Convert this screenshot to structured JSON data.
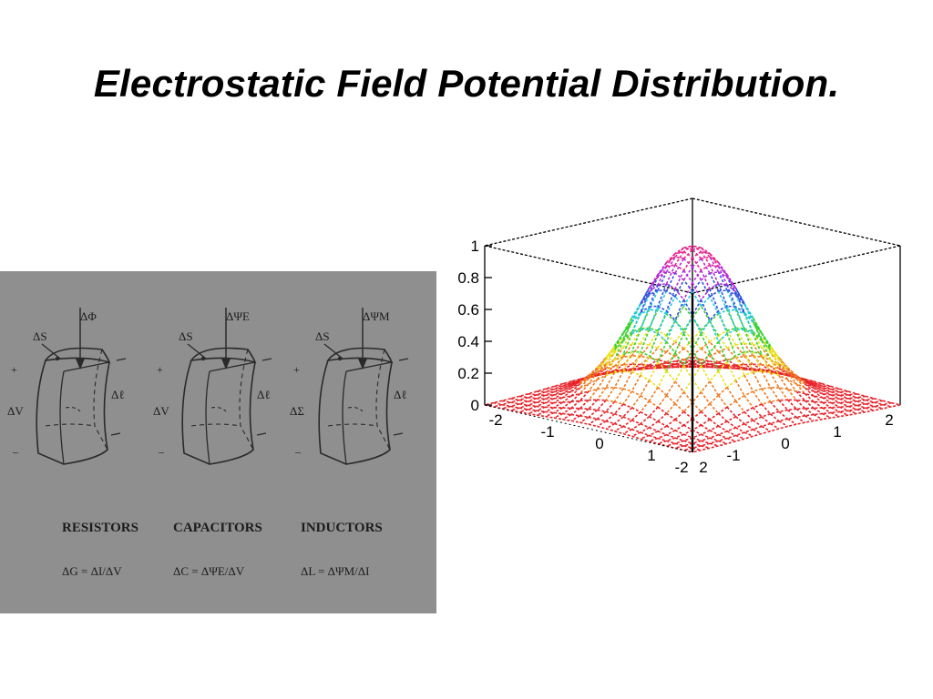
{
  "slide": {
    "title": "Electrostatic Field Potential Distribution."
  },
  "diagram": {
    "elements": [
      {
        "name": "RESISTORS",
        "formula": "ΔG = ΔI/ΔV",
        "flux_label": "ΔΦ",
        "side_label": "ΔV",
        "length_label": "Δℓ",
        "area_label": "ΔS"
      },
      {
        "name": "CAPACITORS",
        "formula": "ΔC = ΔΨE/ΔV",
        "flux_label": "ΔΨE",
        "side_label": "ΔV",
        "length_label": "Δℓ",
        "area_label": "ΔS"
      },
      {
        "name": "INDUCTORS",
        "formula": "ΔL = ΔΨM/ΔI",
        "flux_label": "ΔΨM",
        "side_label": "ΔΣ",
        "length_label": "Δℓ",
        "area_label": "ΔS"
      }
    ],
    "sign_plus": "+",
    "sign_minus": "–"
  },
  "chart_data": {
    "type": "surface3d",
    "title": "",
    "function": "gaussian peak, max 1 at (0,0)",
    "z_ticks": [
      "0",
      "0.2",
      "0.4",
      "0.6",
      "0.8",
      "1"
    ],
    "x_ticks": [
      "-2",
      "-1",
      "0",
      "1",
      "2"
    ],
    "y_ticks": [
      "-2",
      "-1",
      "0",
      "1",
      "2"
    ],
    "zlim": [
      0,
      1
    ],
    "xlim": [
      -2,
      2
    ],
    "ylim": [
      -2,
      2
    ],
    "colormap": [
      "#e8232a",
      "#f07a1e",
      "#e9e21a",
      "#39d12f",
      "#22c7d9",
      "#2f4fe0",
      "#b82bd6",
      "#e8238c"
    ]
  }
}
